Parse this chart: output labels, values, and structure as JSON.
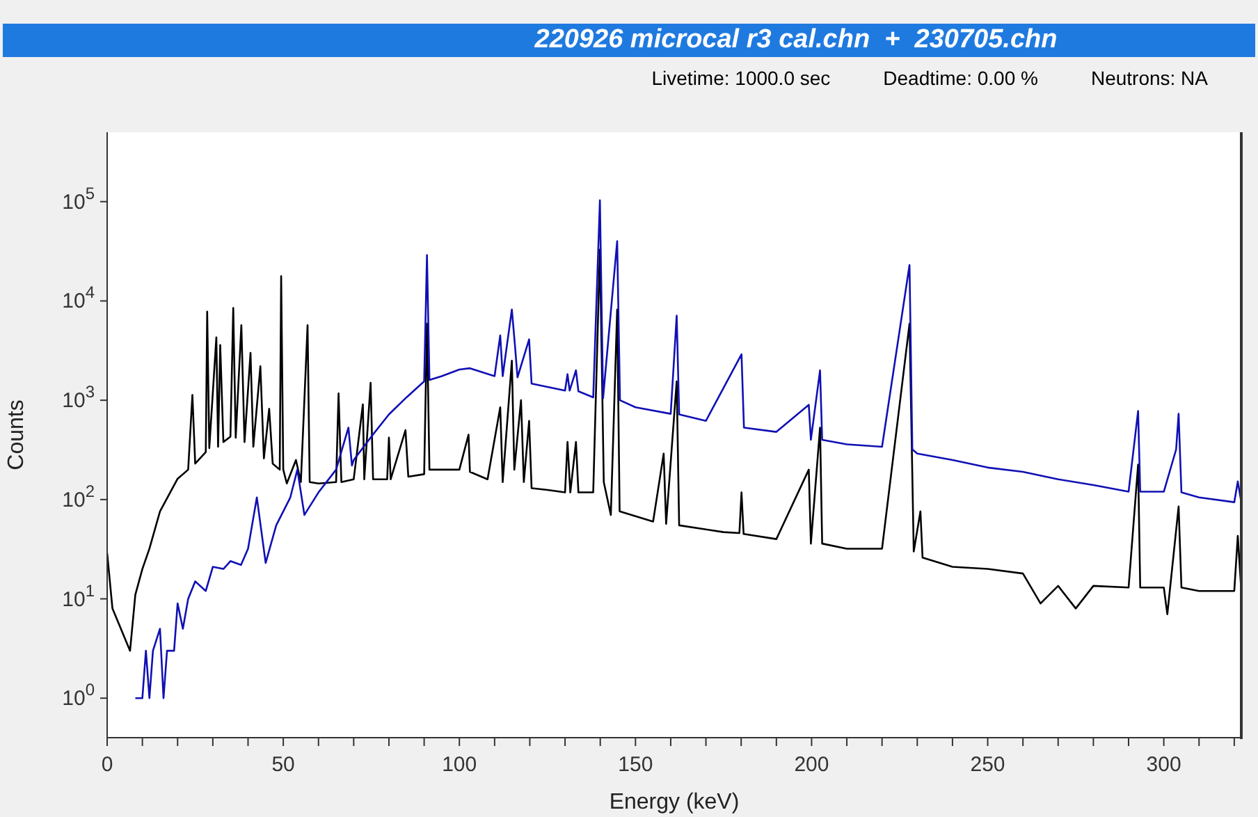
{
  "chart_data": {
    "type": "line",
    "title": "220926 microcal r3 cal.chn  +  230705.chn",
    "annotations": [
      "Livetime: 1000.0 sec",
      "Deadtime: 0.00 %",
      "Neutrons: NA"
    ],
    "xlabel": "Energy (keV)",
    "ylabel": "Counts",
    "log": "y",
    "xlim": [
      0,
      322
    ],
    "xticks": [
      0,
      {
        "value": 10,
        "label": null
      },
      {
        "value": 20,
        "label": null
      },
      {
        "value": 30,
        "label": null
      },
      {
        "value": 40,
        "label": null
      },
      50,
      {
        "value": 60,
        "label": null
      },
      {
        "value": 70,
        "label": null
      },
      {
        "value": 80,
        "label": null
      },
      {
        "value": 90,
        "label": null
      },
      100,
      {
        "value": 110,
        "label": null
      },
      {
        "value": 120,
        "label": null
      },
      {
        "value": 130,
        "label": null
      },
      {
        "value": 140,
        "label": null
      },
      150,
      {
        "value": 160,
        "label": null
      },
      {
        "value": 170,
        "label": null
      },
      {
        "value": 180,
        "label": null
      },
      {
        "value": 190,
        "label": null
      },
      200,
      {
        "value": 210,
        "label": null
      },
      {
        "value": 220,
        "label": null
      },
      {
        "value": 230,
        "label": null
      },
      {
        "value": 240,
        "label": null
      },
      250,
      {
        "value": 260,
        "label": null
      },
      {
        "value": 270,
        "label": null
      },
      {
        "value": 280,
        "label": null
      },
      {
        "value": 290,
        "label": null
      },
      300,
      {
        "value": 310,
        "label": null
      },
      {
        "value": 320,
        "label": null
      }
    ],
    "ylim": [
      0.4,
      500000
    ],
    "yticks": [
      {
        "value": 1,
        "label": "10$^{0}$"
      },
      {
        "value": 10,
        "label": "10$^{1}$"
      },
      {
        "value": 100,
        "label": "10$^{2}$"
      },
      {
        "value": 1000,
        "label": "10$^{3}$"
      },
      {
        "value": 10000,
        "label": "10$^{4}$"
      },
      {
        "value": 100000,
        "label": "10$^{5}$"
      }
    ],
    "series": [
      {
        "color": "#000000",
        "x": [
          0,
          1.5,
          6.5,
          8,
          10,
          12,
          15,
          18,
          20,
          23,
          24.2,
          25,
          28,
          28.4,
          29,
          31,
          31.5,
          32.1,
          33,
          35,
          35.8,
          36.5,
          38.1,
          39,
          40.7,
          41.5,
          43.5,
          44.5,
          46,
          47,
          49,
          49.4,
          50,
          51,
          53.6,
          55,
          56.9,
          57.5,
          60,
          65,
          65.7,
          66.5,
          70,
          72.6,
          73,
          74.8,
          75.5,
          79.5,
          80,
          80.5,
          84.7,
          85.5,
          90,
          90.8,
          91.5,
          95,
          100,
          102.6,
          103,
          108,
          111.6,
          112.3,
          114.9,
          115.6,
          117.5,
          118.3,
          119.8,
          120.5,
          125,
          130,
          130.7,
          131.5,
          133.1,
          133.8,
          138,
          139.9,
          141,
          143,
          144.8,
          145.5,
          150,
          155,
          158,
          158.7,
          161.7,
          162.4,
          170,
          175,
          179.5,
          180.1,
          180.7,
          190,
          199.2,
          199.8,
          202.4,
          203,
          210,
          220,
          227.8,
          229,
          230.9,
          231.5,
          240,
          250,
          260,
          265,
          270,
          275,
          280,
          290,
          292.7,
          293.3,
          300,
          301,
          304.2,
          305,
          310,
          320,
          321,
          322
        ],
        "values": [
          29,
          8,
          3,
          11,
          20,
          32,
          76,
          120,
          162,
          200,
          1130,
          230,
          300,
          7800,
          330,
          4300,
          340,
          3600,
          380,
          430,
          8500,
          420,
          5700,
          380,
          3000,
          340,
          2200,
          260,
          820,
          230,
          200,
          17800,
          200,
          145,
          250,
          150,
          5700,
          150,
          145,
          150,
          1170,
          150,
          160,
          910,
          160,
          1500,
          160,
          160,
          420,
          160,
          500,
          170,
          180,
          5900,
          200,
          200,
          200,
          450,
          190,
          160,
          850,
          150,
          2500,
          200,
          1000,
          150,
          620,
          130,
          125,
          118,
          380,
          118,
          380,
          118,
          118,
          33000,
          150,
          70,
          8200,
          76,
          68,
          60,
          290,
          57,
          1550,
          55,
          50,
          47,
          46,
          118,
          45,
          40,
          200,
          36,
          530,
          36,
          32,
          32,
          5900,
          30,
          76,
          26,
          21,
          20,
          18,
          9,
          13.5,
          8,
          13.5,
          13,
          225,
          13,
          13,
          7,
          85,
          13,
          12,
          12,
          43,
          12
        ]
      },
      {
        "color": "#1010b4",
        "x": [
          8,
          10,
          11,
          12,
          13,
          15,
          16,
          17,
          19,
          20,
          21.5,
          23,
          25,
          28,
          30,
          33,
          35,
          38,
          40,
          42.5,
          45,
          48,
          52,
          54,
          56,
          60,
          65,
          68.5,
          69.5,
          70,
          75,
          80,
          85,
          90,
          90.8,
          91.5,
          95,
          100,
          103,
          110,
          111.6,
          112.3,
          114.9,
          115.8,
          116.5,
          119.8,
          120.5,
          130,
          130.7,
          131.3,
          133.1,
          133.8,
          138,
          139.9,
          140.8,
          144.8,
          145.6,
          150,
          160,
          161.7,
          162.4,
          170,
          180.1,
          180.8,
          190,
          199.2,
          199.8,
          202.4,
          203,
          210,
          220,
          227.8,
          228.6,
          230,
          240,
          250,
          260,
          270,
          280,
          290,
          292.7,
          293.3,
          300,
          303.5,
          304.2,
          305,
          310,
          320,
          321,
          322
        ],
        "values": [
          1,
          1,
          3,
          1,
          3,
          5,
          1,
          3,
          3,
          9,
          5,
          10,
          15,
          12,
          21,
          20,
          24,
          22,
          32,
          105,
          23,
          55,
          105,
          200,
          70,
          118,
          200,
          530,
          220,
          250,
          430,
          720,
          1070,
          1550,
          29000,
          1600,
          1750,
          2040,
          2100,
          1750,
          4500,
          1750,
          8200,
          3500,
          1700,
          4100,
          1470,
          1250,
          1830,
          1250,
          2000,
          1230,
          1070,
          103000,
          1050,
          40000,
          1000,
          850,
          730,
          7100,
          720,
          620,
          2900,
          530,
          480,
          900,
          400,
          2000,
          400,
          360,
          340,
          23000,
          320,
          290,
          250,
          210,
          190,
          160,
          140,
          120,
          780,
          120,
          120,
          320,
          730,
          118,
          105,
          94,
          152,
          94
        ]
      }
    ]
  }
}
